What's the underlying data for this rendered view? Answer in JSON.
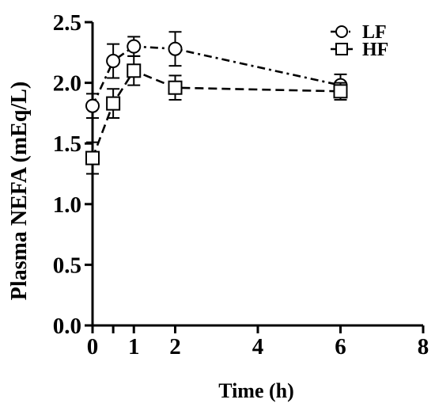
{
  "chart_data": {
    "type": "line",
    "title": "",
    "xlabel": "Time (h)",
    "ylabel": "Plasma NEFA (mEq/L)",
    "xlim": [
      0,
      8
    ],
    "ylim": [
      0,
      2.5
    ],
    "x_ticks": [
      "0",
      "2",
      "4",
      "6",
      "8"
    ],
    "x_minor_ticks": [
      0.5,
      1
    ],
    "x_extra_labels": [
      {
        "x": 1,
        "label": "1"
      }
    ],
    "y_ticks": [
      "0.0",
      "0.5",
      "1.0",
      "1.5",
      "2.0",
      "2.5"
    ],
    "grid": false,
    "legend_position": "top-right",
    "series": [
      {
        "name": "LF",
        "marker": "circle",
        "line_style": "dash-dot",
        "color": "#000000",
        "x": [
          0,
          0.5,
          1,
          2,
          6
        ],
        "y": [
          1.81,
          2.18,
          2.3,
          2.28,
          1.98
        ],
        "error": [
          0.1,
          0.14,
          0.08,
          0.14,
          0.09
        ]
      },
      {
        "name": "HF",
        "marker": "square",
        "line_style": "dashed",
        "color": "#000000",
        "x": [
          0,
          0.5,
          1,
          2,
          6
        ],
        "y": [
          1.38,
          1.83,
          2.1,
          1.96,
          1.93
        ],
        "error": [
          0.13,
          0.12,
          0.12,
          0.1,
          0.07
        ]
      }
    ]
  }
}
